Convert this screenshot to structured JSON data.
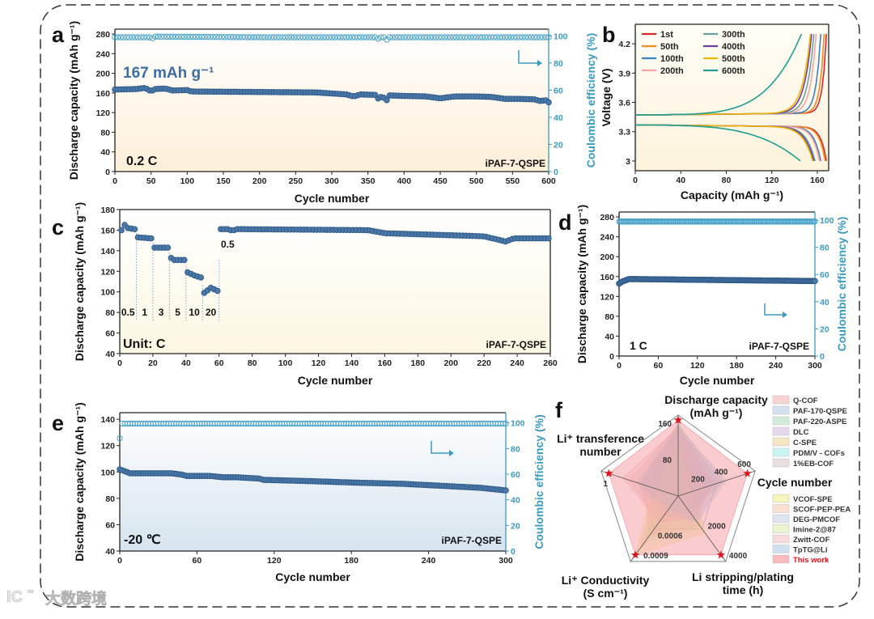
{
  "figure": {
    "watermark": "大数跨境",
    "colors": {
      "capacity": "#4a78a8",
      "capacity_edge": "#2c5684",
      "ce": "#4aa3c8",
      "right_axis": "#3a9bc0",
      "annotation": "#3f6f9f"
    }
  },
  "chart_data": [
    {
      "panel": "a",
      "type": "scatter",
      "xlabel": "Cycle number",
      "ylabel": "Discharge capacity (mAh g⁻¹)",
      "y2label": "Coulombic efficiency (%)",
      "xlim": [
        0,
        600
      ],
      "ylim": [
        0,
        290
      ],
      "y2lim": [
        0,
        105
      ],
      "xticks": [
        0,
        50,
        100,
        150,
        200,
        250,
        300,
        350,
        400,
        450,
        500,
        550,
        600
      ],
      "yticks": [
        0,
        40,
        80,
        120,
        160,
        200,
        240,
        280
      ],
      "y2ticks": [
        0,
        20,
        40,
        60,
        80,
        100
      ],
      "annotations": {
        "capacity": "167 mAh g⁻¹",
        "rate": "0.2 C",
        "sample": "iPAF-7-QSPE"
      },
      "series": [
        {
          "name": "Discharge capacity",
          "axis": "left",
          "marker": "filled",
          "step": 4,
          "x": [
            0,
            30,
            40,
            45,
            50,
            55,
            70,
            80,
            100,
            105,
            200,
            280,
            300,
            320,
            330,
            340,
            360,
            365,
            370,
            375,
            380,
            400,
            430,
            450,
            470,
            500,
            520,
            540,
            560,
            580,
            590,
            595,
            600
          ],
          "y": [
            167,
            168,
            170,
            168,
            163,
            168,
            169,
            165,
            166,
            163,
            162,
            161,
            159,
            157,
            153,
            157,
            156,
            147,
            155,
            143,
            155,
            154,
            153,
            149,
            153,
            153,
            152,
            148,
            148,
            147,
            143,
            146,
            141
          ]
        },
        {
          "name": "Coulombic efficiency",
          "axis": "right",
          "marker": "open",
          "step": 4,
          "x": [
            0,
            48,
            50,
            54,
            200,
            362,
            365,
            368,
            374,
            377,
            380,
            600
          ],
          "y": [
            99,
            99,
            97,
            99.5,
            99,
            99,
            97.5,
            99,
            99,
            96.5,
            99,
            99
          ]
        }
      ]
    },
    {
      "panel": "b",
      "type": "line",
      "xlabel": "Capacity (mAh g⁻¹)",
      "ylabel": "Voltage (V)",
      "xlim": [
        0,
        170
      ],
      "ylim": [
        2.9,
        4.4
      ],
      "xticks": [
        0,
        40,
        80,
        120,
        160
      ],
      "yticks": [
        3.0,
        3.3,
        3.6,
        3.9,
        4.2
      ],
      "series": [
        {
          "name": "1st",
          "color": "#d9272e",
          "charge_capacity": 168,
          "discharge_capacity": 168
        },
        {
          "name": "50th",
          "color": "#f28a1e",
          "charge_capacity": 166,
          "discharge_capacity": 167
        },
        {
          "name": "100th",
          "color": "#3b82c4",
          "charge_capacity": 163,
          "discharge_capacity": 163
        },
        {
          "name": "200th",
          "color": "#f4a3a8",
          "charge_capacity": 159,
          "discharge_capacity": 162
        },
        {
          "name": "300th",
          "color": "#6aa39c",
          "charge_capacity": 157,
          "discharge_capacity": 158
        },
        {
          "name": "400th",
          "color": "#6b3fa0",
          "charge_capacity": 155,
          "discharge_capacity": 157
        },
        {
          "name": "500th",
          "color": "#f2b705",
          "charge_capacity": 154,
          "discharge_capacity": 156
        },
        {
          "name": "600th",
          "color": "#1e9e94",
          "charge_capacity": 146,
          "discharge_capacity": 145
        }
      ]
    },
    {
      "panel": "c",
      "type": "scatter",
      "xlabel": "Cycle number",
      "ylabel": "Discharge capacity (mAh g⁻¹)",
      "xlim": [
        0,
        260
      ],
      "ylim": [
        40,
        180
      ],
      "xticks": [
        0,
        20,
        40,
        60,
        80,
        100,
        120,
        140,
        160,
        180,
        200,
        220,
        240,
        260
      ],
      "yticks": [
        40,
        60,
        80,
        100,
        120,
        140,
        160,
        180
      ],
      "annotations": {
        "unit": "Unit: C",
        "sample": "iPAF-7-QSPE",
        "return_rate": "0.5"
      },
      "rates": [
        {
          "label": "0.5",
          "start": 0,
          "end": 10
        },
        {
          "label": "1",
          "start": 10,
          "end": 20
        },
        {
          "label": "3",
          "start": 20,
          "end": 30
        },
        {
          "label": "5",
          "start": 30,
          "end": 40
        },
        {
          "label": "10",
          "start": 40,
          "end": 50
        },
        {
          "label": "20",
          "start": 50,
          "end": 60
        }
      ],
      "series": [
        {
          "name": "Discharge capacity",
          "axis": "left",
          "marker": "filled",
          "step": 2,
          "x": [
            1,
            3,
            5,
            9,
            11,
            19,
            21,
            29,
            31,
            33,
            39,
            41,
            45,
            49,
            51,
            55,
            59,
            61,
            66,
            68,
            70,
            150,
            160,
            200,
            220,
            233,
            238,
            260
          ],
          "y": [
            160,
            165,
            162,
            161,
            153,
            152,
            143,
            143,
            133,
            131,
            131,
            119,
            116,
            114,
            99,
            104,
            101,
            161,
            161,
            159,
            161,
            160,
            157,
            155,
            154,
            149,
            152,
            152
          ]
        }
      ]
    },
    {
      "panel": "d",
      "type": "scatter",
      "xlabel": "Cycle number",
      "ylabel": "Discharge capacity (mAh g⁻¹)",
      "y2label": "Coulombic efficiency (%)",
      "xlim": [
        0,
        300
      ],
      "ylim": [
        0,
        290
      ],
      "y2lim": [
        0,
        106
      ],
      "xticks": [
        0,
        60,
        120,
        180,
        240,
        300
      ],
      "yticks": [
        0,
        40,
        80,
        120,
        160,
        200,
        240,
        280
      ],
      "y2ticks": [
        0,
        20,
        40,
        60,
        80,
        100
      ],
      "annotations": {
        "rate": "1 C",
        "sample": "iPAF-7-QSPE"
      },
      "series": [
        {
          "name": "Discharge capacity",
          "axis": "left",
          "marker": "filled",
          "step": 2,
          "x": [
            0,
            5,
            15,
            300
          ],
          "y": [
            146,
            150,
            155,
            151
          ]
        },
        {
          "name": "Coulombic efficiency",
          "axis": "right",
          "marker": "open",
          "step": 2,
          "x": [
            0,
            300
          ],
          "y": [
            99,
            99
          ]
        }
      ]
    },
    {
      "panel": "e",
      "type": "scatter",
      "xlabel": "Cycle number",
      "ylabel": "Discharge capacity (mAh g⁻¹)",
      "y2label": "Coulombic efficiency (%)",
      "xlim": [
        0,
        300
      ],
      "ylim": [
        40,
        145
      ],
      "y2lim": [
        0,
        108
      ],
      "xticks": [
        0,
        60,
        120,
        180,
        240,
        300
      ],
      "yticks": [
        40,
        60,
        80,
        100,
        120,
        140
      ],
      "y2ticks": [
        0,
        20,
        40,
        60,
        80,
        100
      ],
      "annotations": {
        "temperature": "-20 ℃",
        "sample": "iPAF-7-QSPE"
      },
      "series": [
        {
          "name": "Discharge capacity",
          "axis": "left",
          "marker": "filled",
          "step": 2,
          "x": [
            0,
            8,
            40,
            48,
            52,
            70,
            80,
            90,
            108,
            112,
            150,
            180,
            220,
            240,
            260,
            280,
            300
          ],
          "y": [
            102,
            99,
            99,
            98,
            97,
            97,
            96,
            96,
            95,
            94,
            93,
            92,
            91,
            90,
            89,
            88,
            86
          ]
        },
        {
          "name": "Coulombic efficiency",
          "axis": "right",
          "marker": "open",
          "step": 2,
          "x": [
            0,
            2,
            300
          ],
          "y": [
            88,
            99.5,
            99.5
          ]
        }
      ]
    },
    {
      "panel": "f",
      "type": "radar",
      "axes": [
        {
          "label": [
            "Discharge capacity",
            "(mAh g⁻¹)"
          ],
          "max": 178,
          "ticks": [
            80,
            160
          ]
        },
        {
          "label": [
            "Cycle number"
          ],
          "max": 667,
          "ticks": [
            200,
            400,
            600
          ]
        },
        {
          "label": [
            "Li stripping/plating",
            "time (h)"
          ],
          "max": 4444,
          "ticks": [
            2000,
            4000
          ]
        },
        {
          "label": [
            "Li⁺ Conductivity",
            "(S cm⁻¹)"
          ],
          "max": 0.001,
          "ticks": [
            0.0006,
            0.0009
          ]
        },
        {
          "label": [
            "Li⁺ transference",
            "number"
          ],
          "max": 1.11,
          "ticks": [
            1.0
          ]
        }
      ],
      "series": [
        {
          "name": "Q-COF",
          "color": "#f4b6b6",
          "values": [
            150,
            300,
            1500,
            0.0003,
            0.6
          ]
        },
        {
          "name": "PAF-170-QSPE",
          "color": "#b7cde8",
          "values": [
            155,
            400,
            1000,
            0.0002,
            0.5
          ]
        },
        {
          "name": "PAF-220-ASPE",
          "color": "#b8dcc0",
          "values": [
            160,
            350,
            800,
            0.0002,
            0.55
          ]
        },
        {
          "name": "DLC",
          "color": "#d3bfe4",
          "values": [
            140,
            300,
            1200,
            0.0003,
            0.45
          ]
        },
        {
          "name": "C-SPE",
          "color": "#f2d59c",
          "values": [
            145,
            200,
            700,
            0.0008,
            0.3
          ]
        },
        {
          "name": "PDM/V - COFs",
          "color": "#a9ecef",
          "values": [
            150,
            250,
            600,
            0.0001,
            0.4
          ]
        },
        {
          "name": "1%EB-COF",
          "color": "#d9cccc",
          "values": [
            155,
            300,
            1000,
            0.0004,
            0.7
          ]
        },
        {
          "name": "VCOF-SPE",
          "color": "#f2ec8e",
          "values": [
            120,
            150,
            2500,
            0.0009,
            0.35
          ]
        },
        {
          "name": "SCOF-PEP-PEA",
          "color": "#f7cbb2",
          "values": [
            140,
            200,
            2000,
            0.0006,
            0.5
          ]
        },
        {
          "name": "DEG-PMCOF",
          "color": "#c9d3e6",
          "values": [
            150,
            420,
            1800,
            0.0003,
            0.6
          ]
        },
        {
          "name": "Imine-2@87",
          "color": "#d8efb0",
          "values": [
            130,
            100,
            2200,
            0.0007,
            0.3
          ]
        },
        {
          "name": "Zwitt-COF",
          "color": "#f5c3c6",
          "values": [
            150,
            300,
            1500,
            0.0004,
            0.8
          ]
        },
        {
          "name": "TpTG@Li",
          "color": "#b3cbe8",
          "values": [
            145,
            380,
            1700,
            0.0002,
            0.55
          ]
        },
        {
          "name": "This work",
          "color": "#f58e95",
          "values": [
            167,
            600,
            4000,
            0.0009,
            1.0
          ],
          "highlight": true
        }
      ]
    }
  ]
}
